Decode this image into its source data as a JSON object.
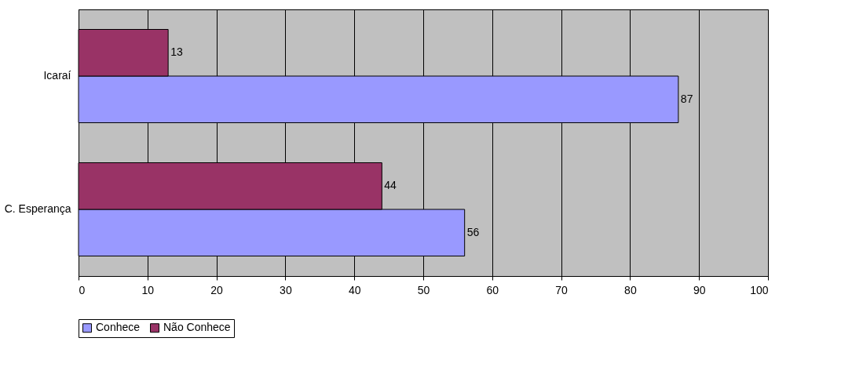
{
  "chart_data": {
    "type": "bar",
    "orientation": "horizontal",
    "categories": [
      "Icaraí",
      "C. Esperança"
    ],
    "series": [
      {
        "name": "Conhece",
        "color": "#9999ff",
        "values": [
          87,
          56
        ]
      },
      {
        "name": "Não Conhece",
        "color": "#993366",
        "values": [
          13,
          44
        ]
      }
    ],
    "xlim": [
      0,
      100
    ],
    "xticks": [
      0,
      10,
      20,
      30,
      40,
      50,
      60,
      70,
      80,
      90,
      100
    ],
    "grid": "x",
    "legend": "bottom",
    "data_labels": true
  }
}
